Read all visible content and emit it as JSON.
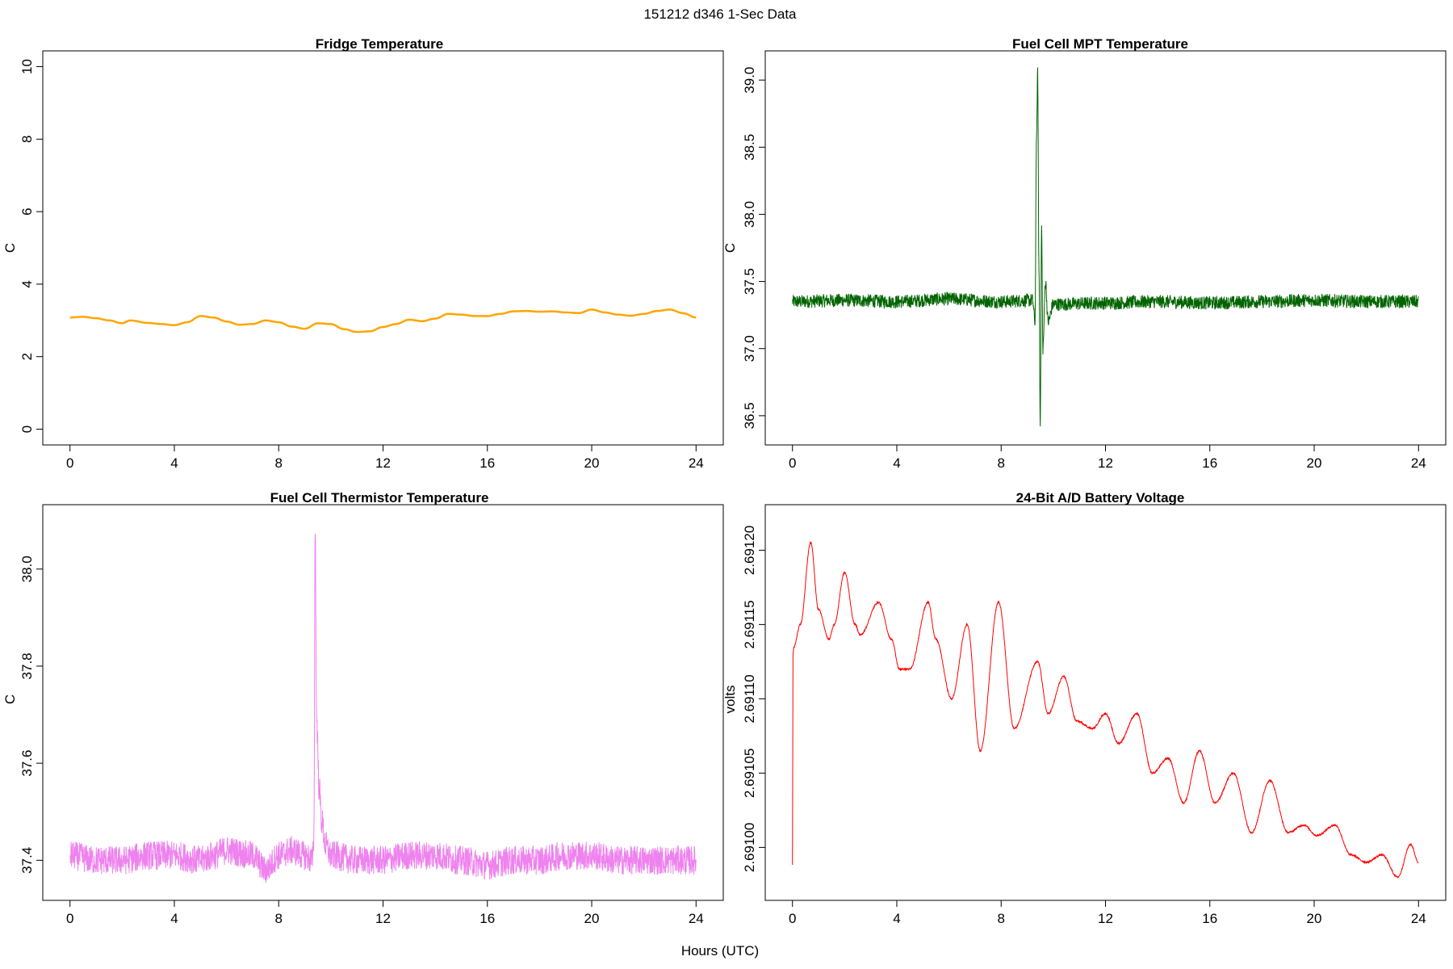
{
  "figure": {
    "title": "151212   d346   1-Sec Data",
    "xlabel": "Hours (UTC)"
  },
  "chart_data": [
    {
      "type": "line",
      "title": "Fridge Temperature",
      "ylabel": "C",
      "color": "#FFA500",
      "xlim": [
        0,
        24
      ],
      "ylim": [
        0,
        10
      ],
      "xticks": [
        "0",
        "4",
        "8",
        "12",
        "16",
        "20",
        "24"
      ],
      "xtick_values": [
        0,
        4,
        8,
        12,
        16,
        20,
        24
      ],
      "yticks": [
        "0",
        "2",
        "4",
        "6",
        "8",
        "10"
      ],
      "ytick_values": [
        0,
        2,
        4,
        6,
        8,
        10
      ],
      "noise": 0.0,
      "x": [
        0,
        0.5,
        1,
        1.5,
        2,
        2.3,
        3,
        3.5,
        4,
        4.5,
        5,
        5.5,
        6,
        6.5,
        7,
        7.5,
        8,
        8.5,
        9,
        9.5,
        10,
        10.5,
        11,
        11.5,
        12,
        12.5,
        13,
        13.5,
        14,
        14.5,
        15,
        15.5,
        16,
        16.5,
        17,
        17.5,
        18,
        18.5,
        19,
        19.5,
        20,
        20.5,
        21,
        21.5,
        22,
        22.5,
        23,
        23.5,
        24
      ],
      "y": [
        3.08,
        3.1,
        3.06,
        3.0,
        2.92,
        3.0,
        2.93,
        2.9,
        2.87,
        2.95,
        3.12,
        3.08,
        2.97,
        2.88,
        2.9,
        3.0,
        2.95,
        2.83,
        2.77,
        2.92,
        2.9,
        2.76,
        2.68,
        2.7,
        2.82,
        2.9,
        3.02,
        2.98,
        3.05,
        3.18,
        3.16,
        3.12,
        3.12,
        3.18,
        3.25,
        3.26,
        3.24,
        3.25,
        3.22,
        3.2,
        3.3,
        3.22,
        3.16,
        3.13,
        3.18,
        3.26,
        3.3,
        3.2,
        3.08
      ]
    },
    {
      "type": "line",
      "title": "Fuel Cell MPT Temperature",
      "ylabel": "C",
      "color": "#006400",
      "xlim": [
        0,
        24
      ],
      "ylim": [
        36.4,
        39.1
      ],
      "xticks": [
        "0",
        "4",
        "8",
        "12",
        "16",
        "20",
        "24"
      ],
      "xtick_values": [
        0,
        4,
        8,
        12,
        16,
        20,
        24
      ],
      "yticks": [
        "36.5",
        "37.0",
        "37.5",
        "38.0",
        "38.5",
        "39.0"
      ],
      "ytick_values": [
        36.5,
        37.0,
        37.5,
        38.0,
        38.5,
        39.0
      ],
      "noise": 0.1,
      "x": [
        0,
        2,
        4,
        6,
        8,
        9.2,
        9.3,
        9.35,
        9.4,
        9.45,
        9.5,
        9.55,
        9.6,
        9.7,
        9.8,
        10,
        12,
        14,
        16,
        18,
        20,
        22,
        24
      ],
      "y": [
        37.35,
        37.36,
        37.35,
        37.37,
        37.35,
        37.36,
        37.2,
        38.5,
        39.05,
        37.6,
        36.45,
        37.9,
        37.0,
        37.5,
        37.2,
        37.33,
        37.34,
        37.35,
        37.34,
        37.35,
        37.36,
        37.35,
        37.35
      ]
    },
    {
      "type": "line",
      "title": "Fuel Cell Thermistor Temperature",
      "ylabel": "C",
      "color": "#EE82EE",
      "xlim": [
        0,
        24
      ],
      "ylim": [
        37.35,
        38.1
      ],
      "xticks": [
        "0",
        "4",
        "8",
        "12",
        "16",
        "20",
        "24"
      ],
      "xtick_values": [
        0,
        4,
        8,
        12,
        16,
        20,
        24
      ],
      "yticks": [
        "37.4",
        "37.6",
        "37.8",
        "38.0"
      ],
      "ytick_values": [
        37.4,
        37.6,
        37.8,
        38.0
      ],
      "noise": 0.06,
      "x": [
        0,
        1,
        2,
        3,
        4,
        5,
        5.5,
        6,
        7,
        7.5,
        8,
        8.5,
        9,
        9.3,
        9.35,
        9.4,
        9.45,
        9.55,
        9.65,
        9.8,
        10,
        11,
        12,
        13,
        14,
        15,
        16,
        17,
        18,
        19,
        20,
        21,
        22,
        23,
        24
      ],
      "y": [
        37.41,
        37.4,
        37.4,
        37.41,
        37.41,
        37.4,
        37.41,
        37.42,
        37.41,
        37.38,
        37.41,
        37.42,
        37.41,
        37.4,
        37.45,
        38.1,
        37.7,
        37.55,
        37.48,
        37.43,
        37.41,
        37.4,
        37.4,
        37.41,
        37.41,
        37.4,
        37.39,
        37.4,
        37.4,
        37.41,
        37.41,
        37.4,
        37.4,
        37.4,
        37.4
      ]
    },
    {
      "type": "line",
      "title": "24-Bit A/D Battery Voltage",
      "ylabel": "volts",
      "color": "#FF0000",
      "xlim": [
        0,
        24
      ],
      "ylim": [
        2.690975,
        2.69122
      ],
      "xticks": [
        "0",
        "4",
        "8",
        "12",
        "16",
        "20",
        "24"
      ],
      "xtick_values": [
        0,
        4,
        8,
        12,
        16,
        20,
        24
      ],
      "yticks": [
        "2.69100",
        "2.69105",
        "2.69110",
        "2.69115",
        "2.69120"
      ],
      "ytick_values": [
        2.691,
        2.69105,
        2.6911,
        2.69115,
        2.6912
      ],
      "noise": 1.2e-06,
      "x": [
        0,
        0.02,
        0.05,
        0.3,
        0.7,
        1.0,
        1.4,
        1.6,
        2.0,
        2.4,
        2.6,
        3.3,
        3.8,
        4.1,
        4.5,
        5.2,
        5.5,
        6.1,
        6.7,
        7.2,
        7.9,
        8.5,
        9.4,
        9.8,
        10.4,
        10.9,
        11.5,
        12.0,
        12.5,
        13.2,
        13.8,
        14.4,
        15.0,
        15.6,
        16.2,
        16.9,
        17.6,
        18.3,
        19.0,
        19.6,
        20.1,
        20.8,
        21.4,
        22.0,
        22.6,
        23.2,
        23.7,
        24.0
      ],
      "y": [
        2.690988,
        2.69113,
        2.691135,
        2.69115,
        2.691205,
        2.69116,
        2.69114,
        2.69115,
        2.691185,
        2.69115,
        2.691143,
        2.691165,
        2.69114,
        2.69112,
        2.69112,
        2.691165,
        2.69114,
        2.6911,
        2.69115,
        2.691065,
        2.691165,
        2.69108,
        2.691125,
        2.69109,
        2.691115,
        2.691085,
        2.69108,
        2.69109,
        2.69107,
        2.69109,
        2.69105,
        2.69106,
        2.69103,
        2.691065,
        2.69103,
        2.69105,
        2.69101,
        2.691045,
        2.69101,
        2.691015,
        2.691008,
        2.691015,
        2.690995,
        2.69099,
        2.690995,
        2.69098,
        2.691002,
        2.69099
      ]
    }
  ]
}
